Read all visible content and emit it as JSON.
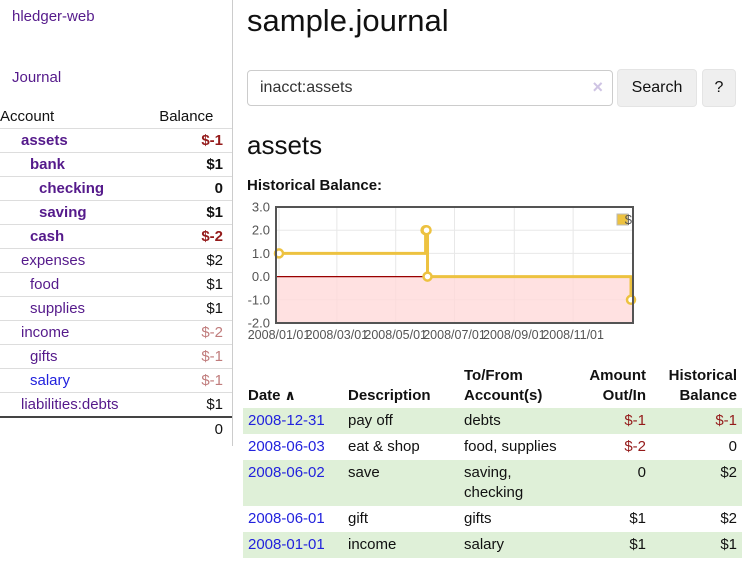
{
  "sidebar": {
    "brand": "hledger-web",
    "nav": [
      {
        "label": "Journal"
      }
    ],
    "accounts_table": {
      "headers": {
        "account": "Account",
        "balance": "Balance"
      },
      "rows": [
        {
          "name": "assets",
          "depth": 1,
          "bold": true,
          "name_color": "purple",
          "balance": "$-1",
          "balance_color": "red"
        },
        {
          "name": "bank",
          "depth": 2,
          "bold": true,
          "name_color": "purple",
          "balance": "$1",
          "balance_color": "black"
        },
        {
          "name": "checking",
          "depth": 3,
          "bold": true,
          "name_color": "purple",
          "balance": "0",
          "balance_color": "black"
        },
        {
          "name": "saving",
          "depth": 3,
          "bold": true,
          "name_color": "purple",
          "balance": "$1",
          "balance_color": "black"
        },
        {
          "name": "cash",
          "depth": 2,
          "bold": true,
          "name_color": "purple",
          "balance": "$-2",
          "balance_color": "red"
        },
        {
          "name": "expenses",
          "depth": 1,
          "bold": false,
          "name_color": "purple",
          "balance": "$2",
          "balance_color": "black"
        },
        {
          "name": "food",
          "depth": 2,
          "bold": false,
          "name_color": "purple",
          "balance": "$1",
          "balance_color": "black"
        },
        {
          "name": "supplies",
          "depth": 2,
          "bold": false,
          "name_color": "purple",
          "balance": "$1",
          "balance_color": "black"
        },
        {
          "name": "income",
          "depth": 1,
          "bold": false,
          "name_color": "purple",
          "balance": "$-2",
          "balance_color": "rose"
        },
        {
          "name": "gifts",
          "depth": 2,
          "bold": false,
          "name_color": "purple",
          "balance": "$-1",
          "balance_color": "rose"
        },
        {
          "name": "salary",
          "depth": 2,
          "bold": false,
          "name_color": "blue",
          "balance": "$-1",
          "balance_color": "rose"
        },
        {
          "name": "liabilities:debts",
          "depth": 1,
          "bold": false,
          "name_color": "purple",
          "balance": "$1",
          "balance_color": "black"
        }
      ],
      "total": "0"
    }
  },
  "header": {
    "title": "sample.journal"
  },
  "search": {
    "value": "inacct:assets",
    "button_label": "Search",
    "help_label": "?",
    "clear_icon": "×"
  },
  "account_page": {
    "heading": "assets",
    "chart_title": "Historical Balance:"
  },
  "chart_data": {
    "type": "line",
    "step": true,
    "title": "Historical Balance:",
    "series": [
      {
        "name": "$",
        "color": "#edc240",
        "points": [
          {
            "date": "2008-01-01",
            "value": 1
          },
          {
            "date": "2008-06-01",
            "value": 2
          },
          {
            "date": "2008-06-02",
            "value": 2
          },
          {
            "date": "2008-06-03",
            "value": 0
          },
          {
            "date": "2008-12-31",
            "value": -1
          }
        ]
      }
    ],
    "x_ticks": [
      "2008/01/01",
      "2008/03/01",
      "2008/05/01",
      "2008/07/01",
      "2008/09/01",
      "2008/11/01"
    ],
    "y_ticks": [
      "3.0",
      "2.0",
      "1.0",
      "0.0",
      "-1.0",
      "-2.0"
    ],
    "ylim": [
      -2,
      3
    ],
    "x_range": [
      "2008-01-01",
      "2008-12-31"
    ],
    "legend": {
      "label": "$",
      "position": "top-right"
    },
    "grid": true,
    "grid_color": "#e8e8e8",
    "border_color": "#545454",
    "negative_region_color": "#ffd8d8",
    "zero_line_color": "#990000",
    "axis_label_color": "#545454"
  },
  "register": {
    "headers": {
      "date": "Date",
      "sort_icon": "∧",
      "description": "Description",
      "accounts": "To/From Account(s)",
      "amount": "Amount Out/In",
      "balance": "Historical Balance"
    },
    "rows": [
      {
        "date": "2008-12-31",
        "description": "pay off",
        "accounts": "debts",
        "amount": "$-1",
        "amount_negative": true,
        "balance": "$-1",
        "balance_negative": true,
        "shaded": true
      },
      {
        "date": "2008-06-03",
        "description": "eat & shop",
        "accounts": "food, supplies",
        "amount": "$-2",
        "amount_negative": true,
        "balance": "0",
        "balance_negative": false,
        "shaded": false
      },
      {
        "date": "2008-06-02",
        "description": "save",
        "accounts": "saving, checking",
        "amount": "0",
        "amount_negative": false,
        "balance": "$2",
        "balance_negative": false,
        "shaded": true
      },
      {
        "date": "2008-06-01",
        "description": "gift",
        "accounts": "gifts",
        "amount": "$1",
        "amount_negative": false,
        "balance": "$2",
        "balance_negative": false,
        "shaded": false
      },
      {
        "date": "2008-01-01",
        "description": "income",
        "accounts": "salary",
        "amount": "$1",
        "amount_negative": false,
        "balance": "$1",
        "balance_negative": false,
        "shaded": true
      }
    ]
  },
  "colors": {
    "link_purple": "#551a8b",
    "link_blue": "#2222dd",
    "negative_red": "#941a1a",
    "negative_rose": "#c07c7c",
    "row_stripe_green": "#dff0d8",
    "chart_gold": "#edc240"
  }
}
